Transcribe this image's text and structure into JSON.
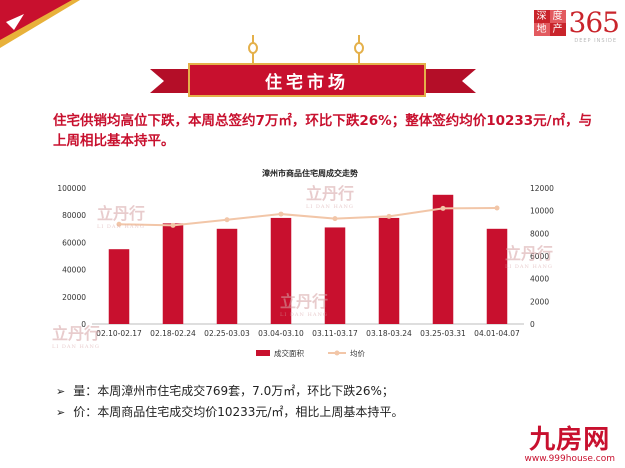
{
  "brand": {
    "cells": [
      "深",
      "度",
      "地",
      "产"
    ],
    "number": "365",
    "tagline": "DEEP INSIDE"
  },
  "banner": {
    "title": "住宅市场"
  },
  "summary": {
    "text": "住宅供销均高位下跌，本周总签约7万㎡，环比下跌26%；整体签约均价10233元/㎡，与上周相比基本持平。"
  },
  "watermark": {
    "name": "立丹行",
    "pinyin": "LI DAN HANG"
  },
  "chart_data": {
    "type": "bar+line",
    "title": "漳州市商品住宅周成交走势",
    "categories": [
      "02.10-02.17",
      "02.18-02.24",
      "02.25-03.03",
      "03.04-03.10",
      "03.11-03.17",
      "03.18-03.24",
      "03.25-03.31",
      "04.01-04.07"
    ],
    "series": [
      {
        "name": "成交面积",
        "type": "bar",
        "axis": "left",
        "color": "#c8102e",
        "values": [
          55000,
          74000,
          70000,
          78000,
          71000,
          78000,
          95000,
          70000
        ]
      },
      {
        "name": "均价",
        "type": "line",
        "axis": "right",
        "color": "#f2c6a8",
        "values": [
          8800,
          8700,
          9200,
          9700,
          9300,
          9500,
          10200,
          10233
        ]
      }
    ],
    "y_left": {
      "min": 0,
      "max": 100000,
      "ticks": [
        0,
        20000,
        40000,
        60000,
        80000,
        100000
      ]
    },
    "y_right": {
      "min": 0,
      "max": 12000,
      "ticks": [
        0,
        2000,
        4000,
        6000,
        8000,
        10000,
        12000
      ]
    },
    "grid": false,
    "legend": "bottom"
  },
  "bullets": [
    {
      "symbol": "➢",
      "text": "量：本周漳州市住宅成交769套，7.0万㎡，环比下跌26%；"
    },
    {
      "symbol": "➢",
      "text": "价：本周商品住宅成交均价10233元/㎡，相比上周基本持平。"
    }
  ],
  "footer_logo": {
    "name": "九房网",
    "url": "www.999house.com"
  }
}
